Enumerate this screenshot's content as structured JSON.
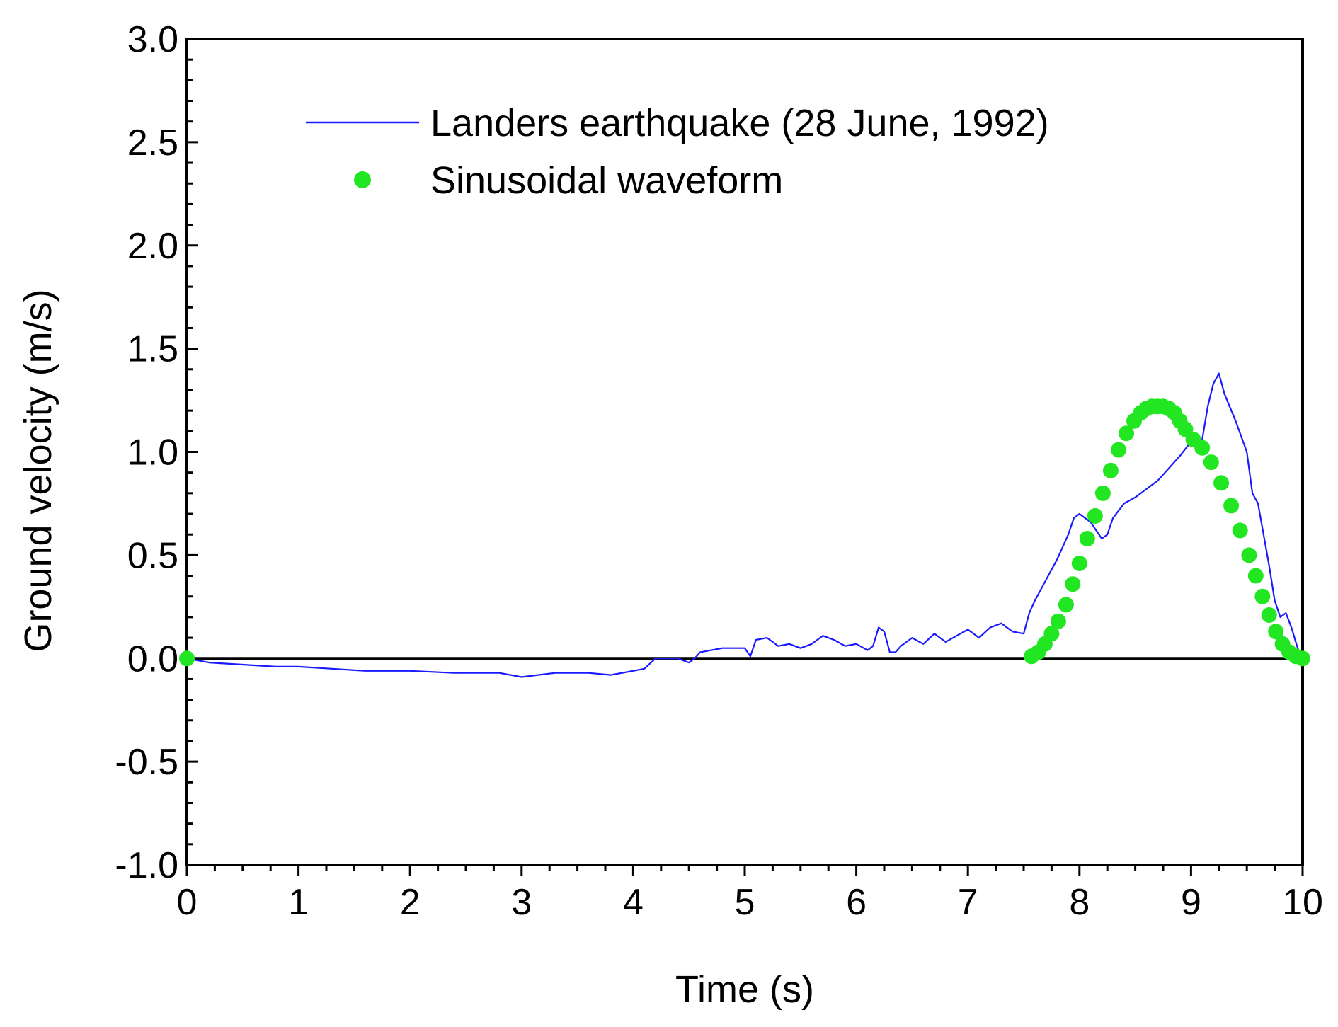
{
  "chart_data": {
    "type": "line",
    "title": "",
    "xlabel": "Time (s)",
    "ylabel": "Ground velocity (m/s)",
    "xlim": [
      0,
      10
    ],
    "ylim": [
      -1.0,
      3.0
    ],
    "x_ticks": [
      0,
      1,
      2,
      3,
      4,
      5,
      6,
      7,
      8,
      9,
      10
    ],
    "x_tick_labels": [
      "0",
      "1",
      "2",
      "3",
      "4",
      "5",
      "6",
      "7",
      "8",
      "9",
      "10"
    ],
    "y_ticks": [
      -1.0,
      -0.5,
      0.0,
      0.5,
      1.0,
      1.5,
      2.0,
      2.5,
      3.0
    ],
    "y_tick_labels": [
      "-1.0",
      "-0.5",
      "0.0",
      "0.5",
      "1.0",
      "1.5",
      "2.0",
      "2.5",
      "3.0"
    ],
    "grid": false,
    "zero_line": true,
    "legend_position": "top-center",
    "series": [
      {
        "name": "Landers earthquake (28 June, 1992)",
        "style": "line",
        "color": "#1a1aff",
        "x": [
          0.0,
          0.2,
          0.5,
          0.8,
          1.0,
          1.3,
          1.6,
          2.0,
          2.4,
          2.8,
          3.0,
          3.3,
          3.6,
          3.8,
          4.0,
          4.1,
          4.2,
          4.3,
          4.4,
          4.5,
          4.55,
          4.6,
          4.7,
          4.8,
          4.9,
          5.0,
          5.05,
          5.1,
          5.2,
          5.3,
          5.4,
          5.5,
          5.6,
          5.7,
          5.8,
          5.9,
          6.0,
          6.1,
          6.15,
          6.2,
          6.25,
          6.3,
          6.35,
          6.4,
          6.5,
          6.6,
          6.7,
          6.8,
          6.9,
          7.0,
          7.1,
          7.2,
          7.3,
          7.4,
          7.5,
          7.55,
          7.6,
          7.7,
          7.8,
          7.9,
          7.95,
          8.0,
          8.05,
          8.1,
          8.15,
          8.2,
          8.25,
          8.3,
          8.4,
          8.5,
          8.6,
          8.7,
          8.8,
          8.9,
          9.0,
          9.05,
          9.1,
          9.15,
          9.2,
          9.25,
          9.3,
          9.4,
          9.5,
          9.55,
          9.6,
          9.7,
          9.75,
          9.8,
          9.85,
          9.9,
          9.95,
          10.0
        ],
        "values": [
          0.0,
          -0.02,
          -0.03,
          -0.04,
          -0.04,
          -0.05,
          -0.06,
          -0.06,
          -0.07,
          -0.07,
          -0.09,
          -0.07,
          -0.07,
          -0.08,
          -0.06,
          -0.05,
          0.0,
          0.0,
          0.0,
          -0.02,
          0.0,
          0.03,
          0.04,
          0.05,
          0.05,
          0.05,
          0.01,
          0.09,
          0.1,
          0.06,
          0.07,
          0.05,
          0.07,
          0.11,
          0.09,
          0.06,
          0.07,
          0.04,
          0.06,
          0.15,
          0.13,
          0.03,
          0.03,
          0.06,
          0.1,
          0.07,
          0.12,
          0.08,
          0.11,
          0.14,
          0.1,
          0.15,
          0.17,
          0.13,
          0.12,
          0.22,
          0.28,
          0.38,
          0.48,
          0.6,
          0.68,
          0.7,
          0.68,
          0.66,
          0.62,
          0.58,
          0.6,
          0.68,
          0.75,
          0.78,
          0.82,
          0.86,
          0.92,
          0.98,
          1.05,
          1.02,
          1.06,
          1.22,
          1.33,
          1.38,
          1.28,
          1.15,
          1.0,
          0.8,
          0.75,
          0.45,
          0.28,
          0.2,
          0.22,
          0.15,
          0.06,
          -0.02
        ]
      },
      {
        "name": "Sinusoidal waveform",
        "style": "markers",
        "color": "#22e622",
        "x": [
          0.0,
          7.57,
          7.63,
          7.69,
          7.75,
          7.81,
          7.88,
          7.94,
          8.0,
          8.07,
          8.14,
          8.21,
          8.28,
          8.35,
          8.42,
          8.49,
          8.55,
          8.6,
          8.65,
          8.7,
          8.75,
          8.8,
          8.85,
          8.9,
          8.95,
          9.02,
          9.1,
          9.18,
          9.27,
          9.36,
          9.44,
          9.52,
          9.58,
          9.64,
          9.7,
          9.76,
          9.82,
          9.88,
          9.94,
          10.0
        ],
        "values": [
          0.0,
          0.01,
          0.03,
          0.07,
          0.12,
          0.18,
          0.26,
          0.36,
          0.46,
          0.58,
          0.69,
          0.8,
          0.91,
          1.01,
          1.09,
          1.15,
          1.19,
          1.21,
          1.22,
          1.22,
          1.22,
          1.21,
          1.19,
          1.15,
          1.11,
          1.06,
          1.02,
          0.95,
          0.85,
          0.74,
          0.62,
          0.5,
          0.4,
          0.3,
          0.21,
          0.13,
          0.07,
          0.03,
          0.01,
          0.0
        ]
      }
    ]
  }
}
